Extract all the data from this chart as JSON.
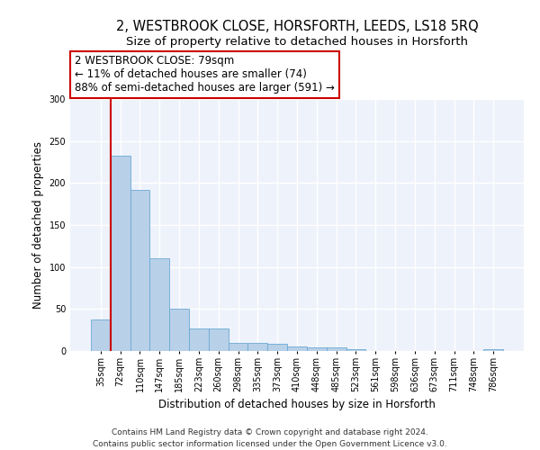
{
  "title1": "2, WESTBROOK CLOSE, HORSFORTH, LEEDS, LS18 5RQ",
  "title2": "Size of property relative to detached houses in Horsforth",
  "xlabel": "Distribution of detached houses by size in Horsforth",
  "ylabel": "Number of detached properties",
  "footer1": "Contains HM Land Registry data © Crown copyright and database right 2024.",
  "footer2": "Contains public sector information licensed under the Open Government Licence v3.0.",
  "bar_labels": [
    "35sqm",
    "72sqm",
    "110sqm",
    "147sqm",
    "185sqm",
    "223sqm",
    "260sqm",
    "298sqm",
    "335sqm",
    "373sqm",
    "410sqm",
    "448sqm",
    "485sqm",
    "523sqm",
    "561sqm",
    "598sqm",
    "636sqm",
    "673sqm",
    "711sqm",
    "748sqm",
    "786sqm"
  ],
  "bar_values": [
    37,
    232,
    192,
    110,
    50,
    27,
    27,
    10,
    10,
    9,
    5,
    4,
    4,
    2,
    0,
    0,
    0,
    0,
    0,
    0,
    2
  ],
  "bar_color": "#b8d0e8",
  "bar_edge_color": "#6aaad4",
  "vline_x_idx": 1,
  "vline_color": "#cc0000",
  "annotation_line1": "2 WESTBROOK CLOSE: 79sqm",
  "annotation_line2": "← 11% of detached houses are smaller (74)",
  "annotation_line3": "88% of semi-detached houses are larger (591) →",
  "annotation_box_color": "#ffffff",
  "annotation_box_edge": "#cc0000",
  "ylim": [
    0,
    300
  ],
  "yticks": [
    0,
    50,
    100,
    150,
    200,
    250,
    300
  ],
  "background_color": "#eef2fb",
  "grid_color": "#ffffff",
  "title1_fontsize": 10.5,
  "title2_fontsize": 9.5,
  "xlabel_fontsize": 8.5,
  "ylabel_fontsize": 8.5,
  "tick_fontsize": 7,
  "annotation_fontsize": 8.5,
  "footer_fontsize": 6.5
}
